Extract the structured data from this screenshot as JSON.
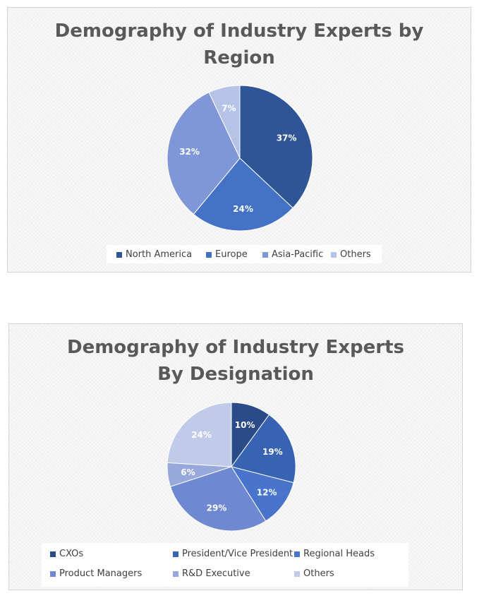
{
  "chart_data": [
    {
      "type": "pie",
      "title": "Demography of Industry Experts by Region",
      "categories": [
        "North America",
        "Europe",
        "Asia-Pacific",
        "Others"
      ],
      "values": [
        37,
        24,
        32,
        7
      ],
      "labels": [
        "37%",
        "24%",
        "32%",
        "7%"
      ],
      "colors": [
        "#2f5597",
        "#4472c4",
        "#7f97d6",
        "#b4c3e6"
      ],
      "legend_position": "bottom"
    },
    {
      "type": "pie",
      "title": "Demography of Industry Experts By Designation",
      "categories": [
        "CXOs",
        "President/Vice President",
        "Regional Heads",
        "Product Managers",
        "R&D Executive",
        "Others"
      ],
      "values": [
        10,
        19,
        12,
        29,
        6,
        24
      ],
      "labels": [
        "10%",
        "19%",
        "12%",
        "29%",
        "6%",
        "24%"
      ],
      "colors": [
        "#2b4a88",
        "#3862b2",
        "#4874cc",
        "#6e88d2",
        "#97a9dc",
        "#c0cbe9"
      ],
      "legend_position": "bottom"
    }
  ]
}
